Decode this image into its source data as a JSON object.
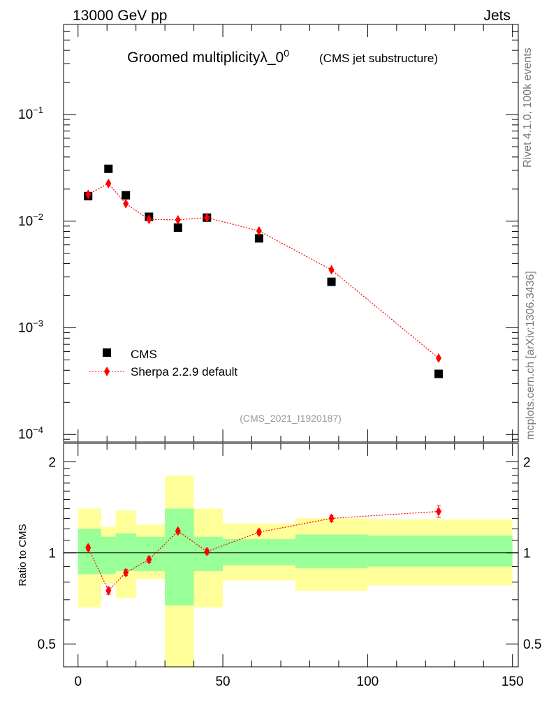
{
  "header": {
    "left": "13000 GeV pp",
    "right": "Jets"
  },
  "side_label_top": "Rivet 4.1.0,  100k events",
  "side_label_bottom": "mcplots.cern.ch [arXiv:1306.3436]",
  "chart_data": {
    "type": "scatter",
    "title": "Groomed multiplicityλ_0",
    "title_superscript": "0",
    "subtitle": "(CMS jet substructure)",
    "watermark": "(CMS_2021_I1920187)",
    "xlim": [
      -5,
      152
    ],
    "main": {
      "yscale": "log",
      "ylim": [
        8.5e-05,
        0.7
      ],
      "yticks": [
        {
          "base": "10",
          "exp": "−1",
          "value": 0.1
        },
        {
          "base": "10",
          "exp": "−2",
          "value": 0.01
        },
        {
          "base": "10",
          "exp": "−3",
          "value": 0.001
        },
        {
          "base": "10",
          "exp": "−4",
          "value": 0.0001
        }
      ],
      "series": [
        {
          "name": "CMS",
          "style": "black-square",
          "x": [
            3.5,
            10.5,
            16.5,
            24.5,
            34.5,
            44.5,
            62.5,
            87.5,
            124.5
          ],
          "y": [
            0.0172,
            0.031,
            0.0175,
            0.011,
            0.0087,
            0.0108,
            0.0069,
            0.0027,
            0.00037
          ]
        },
        {
          "name": "Sherpa 2.2.9 default",
          "style": "red-diamond-dotted",
          "color": "#ff0000",
          "x": [
            3.5,
            10.5,
            16.5,
            24.5,
            34.5,
            44.5,
            62.5,
            87.5,
            124.5
          ],
          "y": [
            0.0178,
            0.0226,
            0.0146,
            0.0104,
            0.0103,
            0.0108,
            0.0081,
            0.0035,
            0.00052
          ]
        }
      ]
    },
    "ratio": {
      "ylabel": "Ratio to CMS",
      "yscale": "log",
      "ylim": [
        0.42,
        2.3
      ],
      "yticks": [
        {
          "label": "2",
          "value": 2
        },
        {
          "label": "1",
          "value": 1
        },
        {
          "label": "0.5",
          "value": 0.5
        }
      ],
      "bands": [
        {
          "x0": 0,
          "x1": 8,
          "inner": [
            0.85,
            1.2
          ],
          "outer": [
            0.66,
            1.4
          ]
        },
        {
          "x0": 8,
          "x1": 13,
          "inner": [
            0.85,
            1.13
          ],
          "outer": [
            0.79,
            1.22
          ]
        },
        {
          "x0": 13,
          "x1": 20,
          "inner": [
            0.87,
            1.16
          ],
          "outer": [
            0.71,
            1.38
          ]
        },
        {
          "x0": 20,
          "x1": 30,
          "inner": [
            0.87,
            1.13
          ],
          "outer": [
            0.82,
            1.24
          ]
        },
        {
          "x0": 30,
          "x1": 40,
          "inner": [
            0.67,
            1.4
          ],
          "outer": [
            0.4,
            1.8
          ]
        },
        {
          "x0": 40,
          "x1": 50,
          "inner": [
            0.87,
            1.13
          ],
          "outer": [
            0.66,
            1.4
          ]
        },
        {
          "x0": 50,
          "x1": 75,
          "inner": [
            0.91,
            1.11
          ],
          "outer": [
            0.81,
            1.25
          ]
        },
        {
          "x0": 75,
          "x1": 100,
          "inner": [
            0.89,
            1.15
          ],
          "outer": [
            0.75,
            1.3
          ]
        },
        {
          "x0": 100,
          "x1": 150,
          "inner": [
            0.9,
            1.14
          ],
          "outer": [
            0.78,
            1.29
          ]
        }
      ],
      "series": {
        "name": "Sherpa 2.2.9 default",
        "x": [
          3.5,
          10.5,
          16.5,
          24.5,
          34.5,
          44.5,
          62.5,
          87.5,
          124.5
        ],
        "y": [
          1.04,
          0.75,
          0.86,
          0.95,
          1.18,
          1.01,
          1.17,
          1.3,
          1.37
        ],
        "err": [
          0.02,
          0.02,
          0.02,
          0.02,
          0.02,
          0.02,
          0.02,
          0.03,
          0.06
        ]
      }
    },
    "xticks": [
      0,
      50,
      100,
      150
    ],
    "colors": {
      "inner_band": "#99ff99",
      "outer_band": "#ffff99",
      "model": "#ff0000",
      "data": "#000000"
    }
  }
}
